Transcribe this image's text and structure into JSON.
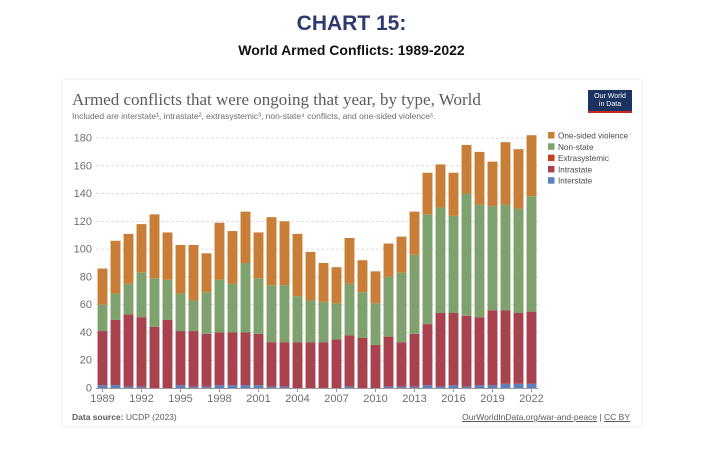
{
  "header": {
    "chart_number": "CHART 15:",
    "subtitle": "World Armed Conflicts: 1989-2022"
  },
  "owid": {
    "logo_line1": "Our World",
    "logo_line2": "in Data",
    "source_label": "Data source:",
    "source_value": "UCDP (2023)",
    "link_text": "OurWorldInData.org/war-and-peace",
    "license_sep": " | ",
    "license": "CC BY"
  },
  "colors": {
    "interstate": "#5b7fbf",
    "intrastate": "#a9424f",
    "nonstate": "#7ea16e",
    "extrasystemic": "#c9401f",
    "one_sided": "#c97e37"
  },
  "chart_data": {
    "type": "bar",
    "stacked": true,
    "title": "Armed conflicts that were ongoing that year, by type, World",
    "subtitle": "Included are interstate¹, intrastate², extrasystemic³, non-state⁴ conflicts, and one-sided violence⁵.",
    "x": [
      1989,
      1990,
      1991,
      1992,
      1993,
      1994,
      1995,
      1996,
      1997,
      1998,
      1999,
      2000,
      2001,
      2002,
      2003,
      2004,
      2005,
      2006,
      2007,
      2008,
      2009,
      2010,
      2011,
      2012,
      2013,
      2014,
      2015,
      2016,
      2017,
      2018,
      2019,
      2020,
      2021,
      2022
    ],
    "x_ticks": [
      "1989",
      "1992",
      "1995",
      "1998",
      "2001",
      "2004",
      "2007",
      "2010",
      "2013",
      "2016",
      "2019",
      "2022"
    ],
    "ylim": [
      0,
      180
    ],
    "y_ticks": [
      0,
      20,
      40,
      60,
      80,
      100,
      120,
      140,
      160,
      180
    ],
    "grid": "horizontal dashed",
    "legend_position": "right",
    "series": [
      {
        "name": "Interstate",
        "values": [
          2,
          2,
          1,
          1,
          0,
          0,
          2,
          1,
          1,
          2,
          2,
          2,
          2,
          1,
          1,
          0,
          0,
          0,
          0,
          1,
          0,
          0,
          1,
          1,
          1,
          2,
          1,
          2,
          1,
          2,
          2,
          3,
          3,
          3
        ]
      },
      {
        "name": "Intrastate",
        "values": [
          39,
          47,
          52,
          50,
          44,
          49,
          39,
          40,
          38,
          38,
          38,
          38,
          37,
          32,
          32,
          33,
          33,
          33,
          35,
          37,
          36,
          31,
          36,
          32,
          38,
          44,
          53,
          52,
          51,
          49,
          54,
          53,
          51,
          52
        ]
      },
      {
        "name": "Extrasystemic",
        "values": [
          0,
          0,
          0,
          0,
          0,
          0,
          0,
          0,
          0,
          0,
          0,
          0,
          0,
          0,
          0,
          0,
          0,
          0,
          0,
          0,
          0,
          0,
          0,
          0,
          0,
          0,
          0,
          0,
          0,
          0,
          0,
          0,
          0,
          0
        ]
      },
      {
        "name": "Non-state",
        "values": [
          19,
          19,
          22,
          32,
          35,
          29,
          27,
          22,
          30,
          38,
          35,
          50,
          40,
          41,
          41,
          33,
          30,
          29,
          26,
          37,
          33,
          30,
          43,
          50,
          57,
          79,
          76,
          70,
          88,
          81,
          75,
          76,
          75,
          83
        ]
      },
      {
        "name": "One-sided violence",
        "values": [
          26,
          38,
          36,
          35,
          46,
          34,
          35,
          40,
          28,
          41,
          38,
          37,
          33,
          49,
          46,
          45,
          35,
          28,
          26,
          33,
          23,
          23,
          24,
          26,
          31,
          30,
          31,
          31,
          35,
          38,
          32,
          45,
          43,
          44
        ]
      }
    ]
  }
}
